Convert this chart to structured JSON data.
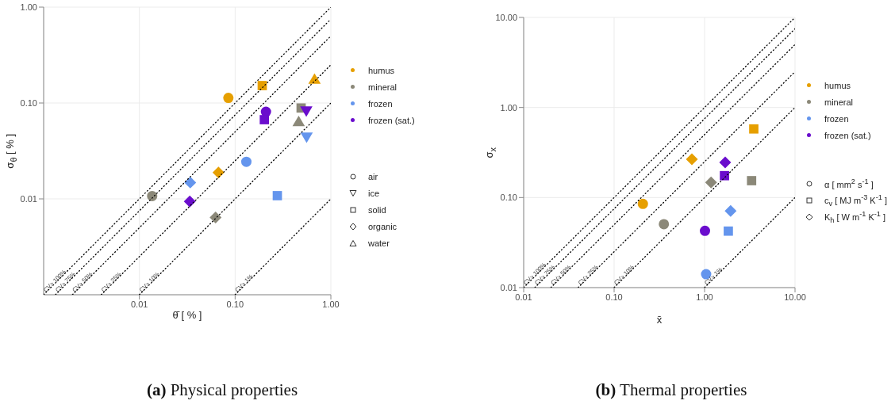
{
  "chart_data": [
    {
      "type": "scatter",
      "title": "(a) Physical properties",
      "xlabel": "θ̄ [ % ]",
      "ylabel": "σ$_{θ}$ [ % ]",
      "log": "xy",
      "grid": true,
      "legend": "right",
      "marker": [
        "circle",
        "triangle-down",
        "square",
        "diamond",
        "triangle"
      ],
      "annotations": [
        "air",
        "ice",
        "solid",
        "organic",
        "water"
      ],
      "xlim": [
        0.001,
        1
      ],
      "ylim": [
        0.001,
        1
      ],
      "xticks": [
        0.01,
        {
          "value": 0.1,
          "label": "0.10"
        },
        {
          "value": 1,
          "label": "1.00"
        }
      ],
      "yticks": [
        0.01,
        {
          "value": 0.1,
          "label": "0.10"
        },
        {
          "value": 1,
          "label": "1.00"
        }
      ],
      "series": [
        {
          "name": "humus",
          "color": "#e69f00",
          "x": [
            0.085,
            0.192,
            0.067,
            0.675
          ],
          "values": [
            0.113,
            0.152,
            0.0188,
            0.176
          ],
          "marker": [
            "circle",
            "square",
            "diamond",
            "triangle"
          ]
        },
        {
          "name": "mineral",
          "color": "#8b8878",
          "x": [
            0.0136,
            0.489,
            0.0625,
            0.461
          ],
          "values": [
            0.0107,
            0.0887,
            0.0064,
            0.0637
          ],
          "marker": [
            "circle",
            "square",
            "diamond",
            "triangle"
          ]
        },
        {
          "name": "frozen",
          "color": "#6495ed",
          "x": [
            0.131,
            0.558,
            0.276,
            0.034
          ],
          "values": [
            0.0244,
            0.0444,
            0.0108,
            0.0148
          ],
          "marker": [
            "circle",
            "triangle-down",
            "square",
            "diamond"
          ]
        },
        {
          "name": "frozen (sat.)",
          "color": "#6a0dcd",
          "x": [
            0.21,
            0.202,
            0.554,
            0.0336
          ],
          "values": [
            0.081,
            0.067,
            0.083,
            0.0094
          ],
          "marker": [
            "circle",
            "square",
            "triangle-down",
            "diamond"
          ]
        },
        {
          "type": "line",
          "name": "CV> 100%",
          "color": "#000000",
          "line_style": "dotted",
          "marker": "none",
          "x": [
            0.001,
            1
          ],
          "values": [
            0.001,
            1
          ]
        },
        {
          "type": "line",
          "name": "CV> 75%",
          "color": "#000000",
          "line_style": "dotted",
          "marker": "none",
          "x": [
            0.00133,
            1
          ],
          "values": [
            0.001,
            0.75
          ]
        },
        {
          "type": "line",
          "name": "CV> 50%",
          "color": "#000000",
          "line_style": "dotted",
          "marker": "none",
          "x": [
            0.002,
            1
          ],
          "values": [
            0.001,
            0.5
          ]
        },
        {
          "type": "line",
          "name": "CV> 25%",
          "color": "#000000",
          "line_style": "dotted",
          "marker": "none",
          "x": [
            0.004,
            1
          ],
          "values": [
            0.001,
            0.25
          ]
        },
        {
          "type": "line",
          "name": "CV> 10%",
          "color": "#000000",
          "line_style": "dotted",
          "marker": "none",
          "x": [
            0.01,
            1
          ],
          "values": [
            0.001,
            0.1
          ]
        },
        {
          "type": "line",
          "name": "CV> 1%",
          "color": "#000000",
          "line_style": "dotted",
          "marker": "none",
          "x": [
            0.1,
            1
          ],
          "values": [
            0.001,
            0.01
          ]
        }
      ]
    },
    {
      "type": "scatter",
      "title": "(b) Thermal properties",
      "xlabel": "x̄",
      "ylabel": "σ$_{x}$",
      "log": "xy",
      "grid": true,
      "legend": "right",
      "marker": [
        "circle",
        "square",
        "diamond"
      ],
      "annotations": [
        "α [ mm$^{2}$ s$^{-1}$ ]",
        "c$_{v}$ [ MJ m$^{-3}$ K$^{-1}$ ]",
        "K$_{h}$ [ W m$^{-1}$ K$^{-1}$ ]"
      ],
      "xlim": [
        0.01,
        10
      ],
      "ylim": [
        0.01,
        10
      ],
      "xticks": [
        0.01,
        {
          "value": 0.1,
          "label": "0.10"
        },
        {
          "value": 1,
          "label": "1.00"
        },
        {
          "value": 10,
          "label": "10.00"
        }
      ],
      "yticks": [
        0.01,
        {
          "value": 0.1,
          "label": "0.10"
        },
        {
          "value": 1,
          "label": "1.00"
        },
        {
          "value": 10,
          "label": "10.00"
        }
      ],
      "series": [
        {
          "name": "humus",
          "color": "#e69f00",
          "x": [
            0.208,
            3.5,
            0.724
          ],
          "values": [
            0.085,
            0.578,
            0.266
          ],
          "marker": [
            "circle",
            "square",
            "diamond"
          ]
        },
        {
          "name": "mineral",
          "color": "#8b8878",
          "x": [
            0.355,
            3.31,
            1.18
          ],
          "values": [
            0.0506,
            0.154,
            0.147
          ],
          "marker": [
            "circle",
            "square",
            "diamond"
          ]
        },
        {
          "name": "frozen",
          "color": "#6495ed",
          "x": [
            1.04,
            1.83,
            1.94
          ],
          "values": [
            0.0141,
            0.0424,
            0.0709
          ],
          "marker": [
            "circle",
            "square",
            "diamond"
          ]
        },
        {
          "name": "frozen (sat.)",
          "color": "#6a0dcd",
          "x": [
            1.01,
            1.66,
            1.69
          ],
          "values": [
            0.0427,
            0.175,
            0.245
          ],
          "marker": [
            "circle",
            "square",
            "diamond"
          ]
        },
        {
          "type": "line",
          "name": "CV> 100%",
          "color": "#000000",
          "line_style": "dotted",
          "marker": "none",
          "x": [
            0.01,
            10
          ],
          "values": [
            0.01,
            10
          ]
        },
        {
          "type": "line",
          "name": "CV> 75%",
          "color": "#000000",
          "line_style": "dotted",
          "marker": "none",
          "x": [
            0.0133,
            10
          ],
          "values": [
            0.01,
            7.5
          ]
        },
        {
          "type": "line",
          "name": "CV> 50%",
          "color": "#000000",
          "line_style": "dotted",
          "marker": "none",
          "x": [
            0.02,
            10
          ],
          "values": [
            0.01,
            5
          ]
        },
        {
          "type": "line",
          "name": "CV> 25%",
          "color": "#000000",
          "line_style": "dotted",
          "marker": "none",
          "x": [
            0.04,
            10
          ],
          "values": [
            0.01,
            2.5
          ]
        },
        {
          "type": "line",
          "name": "CV> 10%",
          "color": "#000000",
          "line_style": "dotted",
          "marker": "none",
          "x": [
            0.1,
            10
          ],
          "values": [
            0.01,
            1
          ]
        },
        {
          "type": "line",
          "name": "CV> 1%",
          "color": "#000000",
          "line_style": "dotted",
          "marker": "none",
          "x": [
            1,
            10
          ],
          "values": [
            0.01,
            0.1
          ]
        }
      ]
    }
  ]
}
